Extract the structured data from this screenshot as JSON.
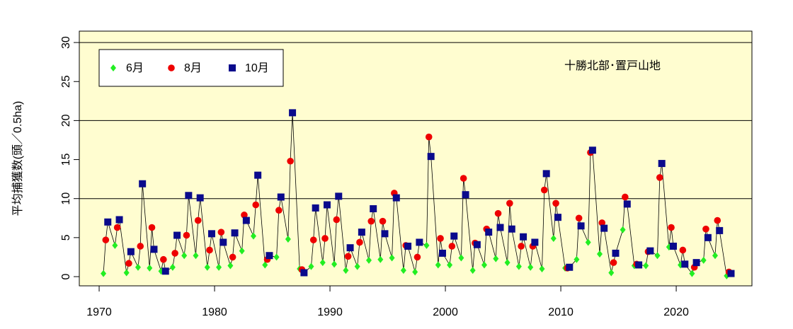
{
  "chart_data": {
    "type": "scatter",
    "annotation": "十勝北部･置戸山地",
    "y_label": "平均捕獲数(頭／0.5ha)",
    "x": [
      1970,
      1971,
      1972,
      1973,
      1974,
      1975,
      1976,
      1977,
      1978,
      1979,
      1980,
      1981,
      1982,
      1983,
      1984,
      1985,
      1986,
      1987,
      1988,
      1989,
      1990,
      1991,
      1992,
      1993,
      1994,
      1995,
      1996,
      1997,
      1998,
      1999,
      2000,
      2001,
      2002,
      2003,
      2004,
      2005,
      2006,
      2007,
      2008,
      2009,
      2010,
      2011,
      2012,
      2013,
      2014,
      2015,
      2016,
      2017,
      2018,
      2019,
      2020,
      2021,
      2022,
      2023,
      2024
    ],
    "series": [
      {
        "name": "6月",
        "color": "#22ee22",
        "marker": "diamond",
        "values": [
          0.4,
          4.0,
          0.5,
          1.2,
          1.1,
          0.7,
          1.2,
          2.7,
          2.7,
          1.2,
          1.2,
          1.4,
          3.3,
          5.2,
          1.5,
          2.5,
          4.8,
          1.0,
          1.3,
          1.8,
          1.6,
          0.8,
          1.3,
          2.1,
          2.2,
          2.4,
          0.8,
          0.6,
          4.0,
          1.5,
          1.5,
          2.4,
          0.8,
          1.5,
          2.3,
          1.8,
          1.3,
          1.2,
          1.0,
          4.9,
          1.1,
          2.2,
          4.4,
          2.9,
          0.5,
          6.0,
          1.4,
          1.4,
          2.7,
          3.8,
          1.5,
          0.4,
          2.1,
          2.7,
          0.1
        ]
      },
      {
        "name": "8月",
        "color": "#ee0000",
        "marker": "circle",
        "values": [
          4.7,
          6.3,
          1.7,
          3.9,
          6.3,
          2.2,
          3.0,
          5.3,
          7.2,
          3.4,
          5.7,
          2.5,
          7.9,
          9.2,
          2.2,
          8.5,
          14.8,
          0.9,
          4.7,
          4.9,
          7.3,
          2.6,
          4.4,
          7.1,
          7.1,
          10.7,
          4.0,
          2.5,
          17.9,
          4.9,
          3.9,
          12.6,
          4.3,
          6.1,
          8.1,
          9.4,
          3.9,
          3.9,
          11.1,
          9.4,
          1.1,
          7.5,
          15.9,
          6.9,
          1.8,
          10.2,
          1.6,
          3.2,
          12.7,
          6.3,
          3.4,
          1.2,
          6.1,
          7.2,
          0.6
        ]
      },
      {
        "name": "10月",
        "color": "#0a0a8c",
        "marker": "square",
        "values": [
          7.0,
          7.3,
          3.2,
          11.9,
          3.5,
          0.7,
          5.3,
          10.4,
          10.1,
          5.5,
          4.4,
          5.6,
          7.2,
          13.0,
          2.7,
          10.2,
          21.0,
          0.5,
          8.8,
          9.2,
          10.3,
          3.7,
          5.7,
          8.7,
          5.5,
          10.1,
          3.9,
          4.4,
          15.4,
          3.0,
          5.2,
          10.5,
          4.1,
          5.7,
          6.3,
          6.1,
          5.1,
          4.4,
          13.2,
          7.6,
          1.2,
          6.5,
          16.2,
          6.2,
          3.0,
          9.3,
          1.5,
          3.3,
          14.5,
          3.9,
          1.6,
          1.8,
          5.0,
          5.9,
          0.4
        ]
      }
    ],
    "xlim": [
      1968.28,
      2026.56
    ],
    "ylim": [
      -1.18,
      31.46
    ],
    "xticks": [
      1970,
      1980,
      1990,
      2000,
      2010,
      2020
    ],
    "yticks": [
      0,
      5,
      10,
      15,
      20,
      25,
      30
    ],
    "grid_lines": [
      10,
      20,
      30
    ],
    "legend": "top-left",
    "background": "#fffdd0"
  }
}
